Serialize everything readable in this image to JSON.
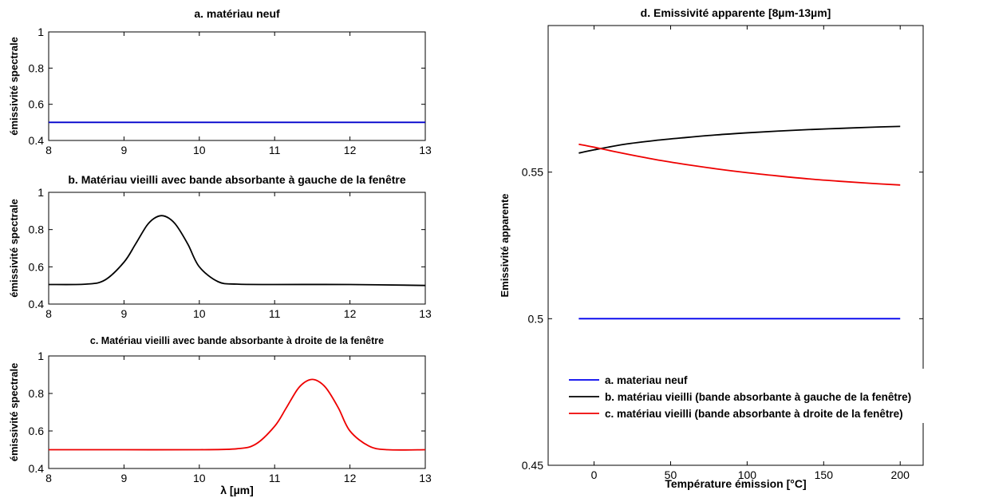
{
  "chart_data": [
    {
      "type": "line",
      "title": "a. matériau neuf",
      "xlabel": "",
      "ylabel": "émissivité spectrale",
      "xlim": [
        8,
        13
      ],
      "ylim": [
        0.4,
        1
      ],
      "xticks": [
        "8",
        "9",
        "10",
        "11",
        "12",
        "13"
      ],
      "yticks": [
        "0.4",
        "0.6",
        "0.8",
        "1"
      ],
      "grid": false,
      "series": [
        {
          "color": "#0000cc",
          "x": [
            8,
            13
          ],
          "y": [
            0.5,
            0.5
          ]
        }
      ]
    },
    {
      "type": "line",
      "title": "b. Matériau vieilli avec bande absorbante à gauche de la fenêtre",
      "xlabel": "",
      "ylabel": "émissivité spectrale",
      "xlim": [
        8,
        13
      ],
      "ylim": [
        0.4,
        1
      ],
      "xticks": [
        "8",
        "9",
        "10",
        "11",
        "12",
        "13"
      ],
      "yticks": [
        "0.4",
        "0.6",
        "0.8",
        "1"
      ],
      "grid": false,
      "series": [
        {
          "color": "#000000",
          "x": [
            8,
            8.5,
            8.75,
            9,
            9.15,
            9.3,
            9.4,
            9.5,
            9.6,
            9.7,
            9.85,
            10,
            10.25,
            10.5,
            11,
            12,
            13
          ],
          "y": [
            0.505,
            0.507,
            0.53,
            0.625,
            0.72,
            0.82,
            0.86,
            0.875,
            0.86,
            0.82,
            0.72,
            0.6,
            0.52,
            0.507,
            0.505,
            0.505,
            0.5
          ]
        }
      ]
    },
    {
      "type": "line",
      "title": "c. Matériau vieilli avec bande absorbante à droite de la fenêtre",
      "xlabel": "λ [µm]",
      "ylabel": "émissivité spectrale",
      "xlim": [
        8,
        13
      ],
      "ylim": [
        0.4,
        1
      ],
      "xticks": [
        "8",
        "9",
        "10",
        "11",
        "12",
        "13"
      ],
      "yticks": [
        "0.4",
        "0.6",
        "0.8",
        "1"
      ],
      "grid": false,
      "series": [
        {
          "color": "#ee0000",
          "x": [
            8,
            9,
            10,
            10.5,
            10.75,
            11,
            11.15,
            11.3,
            11.4,
            11.5,
            11.6,
            11.7,
            11.85,
            12,
            12.25,
            12.5,
            13
          ],
          "y": [
            0.5,
            0.5,
            0.5,
            0.505,
            0.53,
            0.625,
            0.72,
            0.82,
            0.86,
            0.875,
            0.86,
            0.82,
            0.72,
            0.6,
            0.52,
            0.5,
            0.5
          ]
        }
      ]
    },
    {
      "type": "line",
      "title": "d. Emissivité apparente [8µm-13µm]",
      "xlabel": "Température émission [°C]",
      "ylabel": "Emissivité apparente",
      "xlim": [
        -30,
        215
      ],
      "ylim": [
        0.45,
        0.6
      ],
      "xticks": [
        "0",
        "50",
        "100",
        "150",
        "200"
      ],
      "yticks": [
        "0.45",
        "0.5",
        "0.55"
      ],
      "grid": false,
      "legend": "lower-right",
      "series": [
        {
          "name": "a. materiau neuf",
          "color": "#0000ee",
          "x": [
            -10,
            200
          ],
          "y": [
            0.5,
            0.5
          ]
        },
        {
          "name": "b. matériau vieilli (bande absorbante à gauche de la fenêtre)",
          "color": "#000000",
          "x": [
            -10,
            0,
            20,
            40,
            60,
            80,
            100,
            120,
            140,
            160,
            180,
            200
          ],
          "y": [
            0.5565,
            0.5576,
            0.5595,
            0.5608,
            0.5618,
            0.5627,
            0.5634,
            0.564,
            0.5645,
            0.5649,
            0.5653,
            0.5656
          ]
        },
        {
          "name": "c. matériau vieilli (bande absorbante à droite de la fenêtre)",
          "color": "#ee0000",
          "x": [
            -10,
            0,
            20,
            40,
            60,
            80,
            100,
            120,
            140,
            160,
            180,
            200
          ],
          "y": [
            0.5595,
            0.5585,
            0.5563,
            0.5543,
            0.5526,
            0.5511,
            0.5498,
            0.5487,
            0.5477,
            0.5469,
            0.5462,
            0.5456
          ]
        }
      ]
    }
  ]
}
